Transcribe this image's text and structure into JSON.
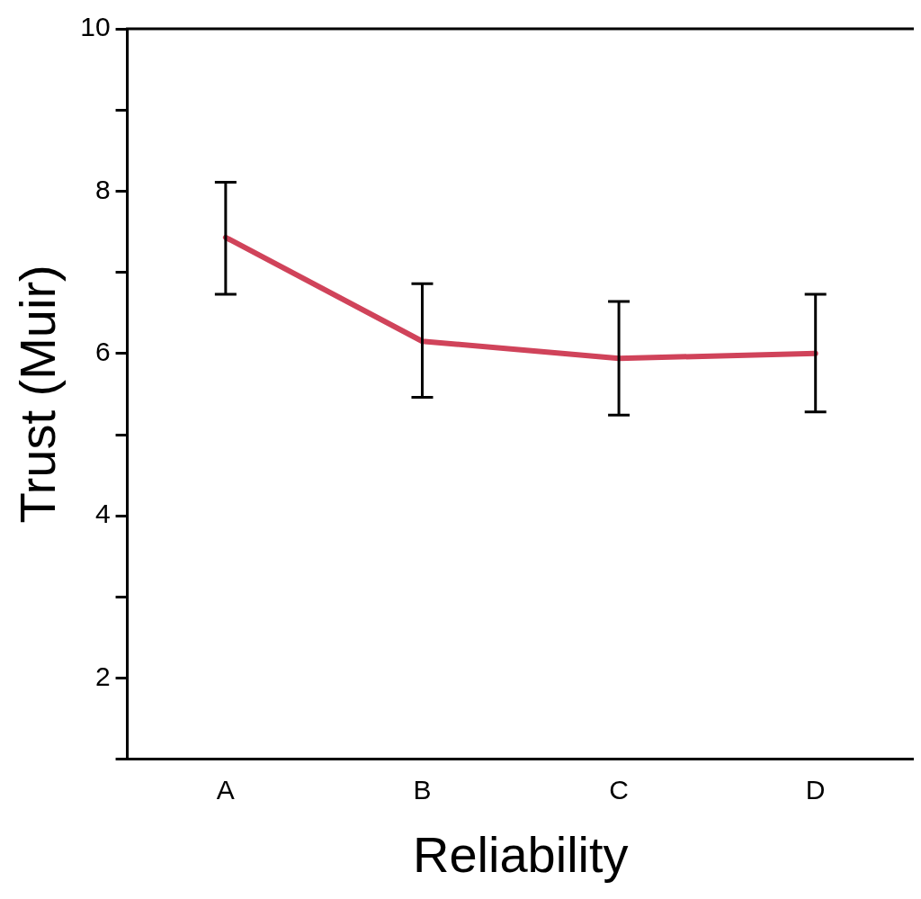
{
  "chart_data": {
    "type": "line",
    "xlabel": "Reliability",
    "ylabel": "Trust (Muir)",
    "categories": [
      "A",
      "B",
      "C",
      "D"
    ],
    "series": [
      {
        "color": "#d0435a",
        "values": [
          7.43,
          6.15,
          5.94,
          6.0
        ],
        "errors": [
          [
            6.73,
            8.11
          ],
          [
            5.46,
            6.86
          ],
          [
            5.24,
            6.64
          ],
          [
            5.28,
            6.73
          ]
        ]
      }
    ],
    "ylim": [
      1,
      10
    ],
    "yticks": [
      {
        "value": 1,
        "label": null
      },
      2,
      {
        "value": 3,
        "label": null
      },
      4,
      {
        "value": 5,
        "label": null
      },
      6,
      {
        "value": 7,
        "label": null
      },
      8,
      {
        "value": 9,
        "label": null
      },
      10
    ],
    "grid": false,
    "legend": false,
    "marker": "none",
    "line_style": "solid"
  }
}
